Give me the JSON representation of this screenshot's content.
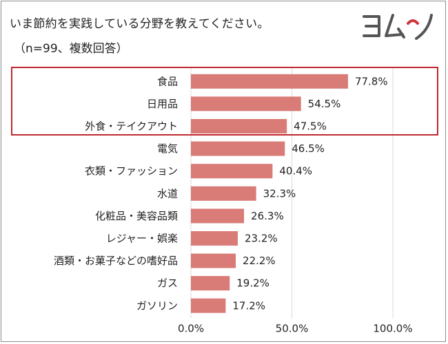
{
  "chart_data": {
    "type": "bar",
    "orientation": "horizontal",
    "title": "いま節約を実践している分野を教えてください。",
    "subtitle": "（n=99、複数回答）",
    "categories": [
      "食品",
      "日用品",
      "外食・テイクアウト",
      "電気",
      "衣類・ファッション",
      "水道",
      "化粧品・美容品類",
      "レジャー・娯楽",
      "酒類・お菓子などの嗜好品",
      "ガス",
      "ガソリン"
    ],
    "values": [
      77.8,
      54.5,
      47.5,
      46.5,
      40.4,
      32.3,
      26.3,
      23.2,
      22.2,
      19.2,
      17.2
    ],
    "value_labels": [
      "77.8%",
      "54.5%",
      "47.5%",
      "46.5%",
      "40.4%",
      "32.3%",
      "26.3%",
      "23.2%",
      "22.2%",
      "19.2%",
      "17.2%"
    ],
    "xlim": [
      0,
      100
    ],
    "xticks": [
      0,
      50,
      100
    ],
    "xtick_labels": [
      "0.0%",
      "50.0%",
      "100.0%"
    ],
    "xlabel": "",
    "ylabel": "",
    "grid": "vertical",
    "legend": "none",
    "highlighted_categories": [
      "食品",
      "日用品",
      "外食・テイクアウト"
    ],
    "colors": {
      "bar": "#d97b77",
      "gridline": "#d9d9d9",
      "highlight_border": "#c0252c",
      "logo": "#555555",
      "logo_accent": "#d0343c"
    }
  },
  "logo": {
    "text": "ヨムーノ",
    "icon": "yomuno-logo"
  }
}
